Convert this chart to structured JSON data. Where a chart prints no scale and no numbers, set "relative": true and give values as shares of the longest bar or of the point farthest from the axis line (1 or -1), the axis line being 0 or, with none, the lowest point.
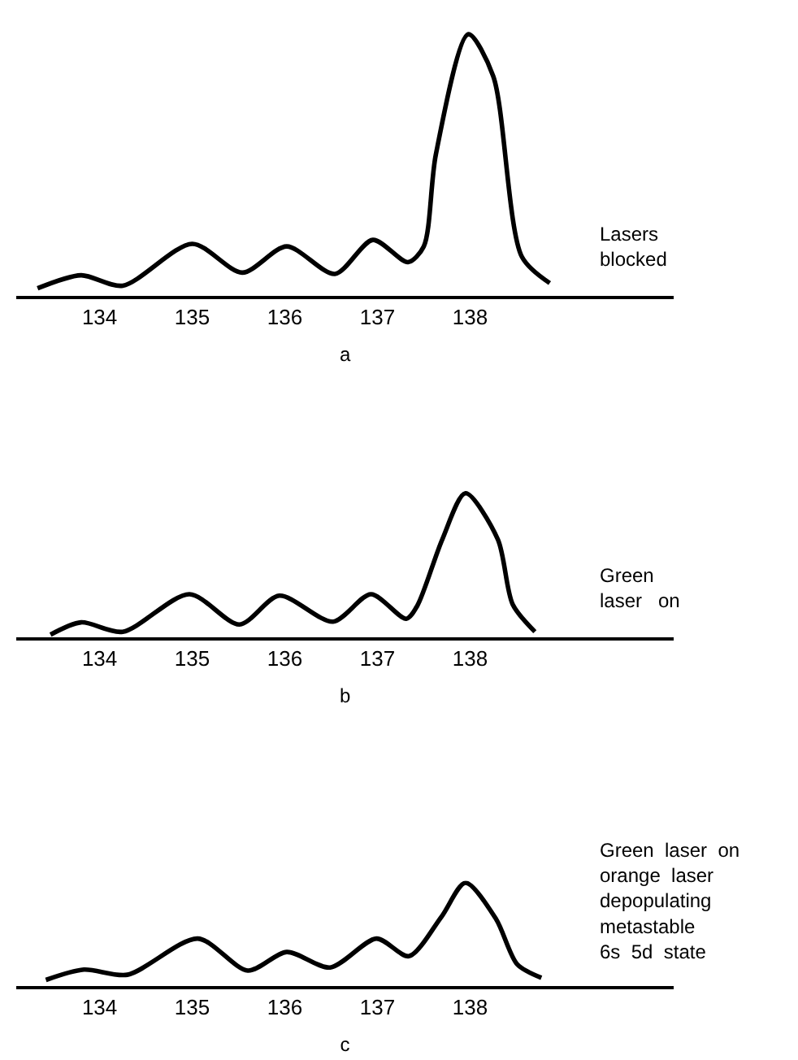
{
  "chart_data": [
    {
      "type": "line",
      "relative": true,
      "xlabel": "a",
      "annotations": [
        "Lasers\nblocked"
      ],
      "xlim": [
        133.1,
        140.2
      ],
      "xticks": [
        134,
        135,
        136,
        137,
        138
      ],
      "series": [
        {
          "color": "#000000",
          "x": [
            133.33,
            133.8,
            134.25,
            135.0,
            135.54,
            136.02,
            136.54,
            136.95,
            137.33,
            137.5,
            137.63,
            137.98,
            138.25,
            138.56,
            138.86
          ],
          "values": [
            0.03,
            0.08,
            0.04,
            0.2,
            0.09,
            0.19,
            0.085,
            0.215,
            0.13,
            0.19,
            0.54,
            1.0,
            0.84,
            0.15,
            0.05
          ]
        }
      ]
    },
    {
      "type": "line",
      "relative": true,
      "xlabel": "b",
      "annotations": [
        "Green\nlaser   on"
      ],
      "xlim": [
        133.1,
        140.2
      ],
      "xticks": [
        134,
        135,
        136,
        137,
        138
      ],
      "series": [
        {
          "color": "#000000",
          "x": [
            133.47,
            133.8,
            134.25,
            134.97,
            135.51,
            135.94,
            136.52,
            136.93,
            137.31,
            137.43,
            137.7,
            137.95,
            138.3,
            138.46,
            138.7
          ],
          "values": [
            0.02,
            0.105,
            0.04,
            0.3,
            0.09,
            0.29,
            0.11,
            0.3,
            0.13,
            0.22,
            0.68,
            1.0,
            0.68,
            0.23,
            0.04
          ]
        }
      ]
    },
    {
      "type": "line",
      "relative": true,
      "xlabel": "c",
      "annotations": [
        "Green  laser  on\norange  laser\ndepopulating\nmetastable\n6s  5d  state"
      ],
      "xlim": [
        133.1,
        140.2
      ],
      "xticks": [
        134,
        135,
        136,
        137,
        138
      ],
      "series": [
        {
          "color": "#000000",
          "x": [
            133.42,
            133.83,
            134.3,
            135.06,
            135.6,
            136.02,
            136.49,
            136.99,
            137.34,
            137.69,
            137.95,
            138.28,
            138.51,
            138.77
          ],
          "values": [
            0.06,
            0.16,
            0.11,
            0.46,
            0.15,
            0.33,
            0.18,
            0.46,
            0.29,
            0.67,
            1.0,
            0.65,
            0.21,
            0.08
          ]
        }
      ]
    }
  ]
}
